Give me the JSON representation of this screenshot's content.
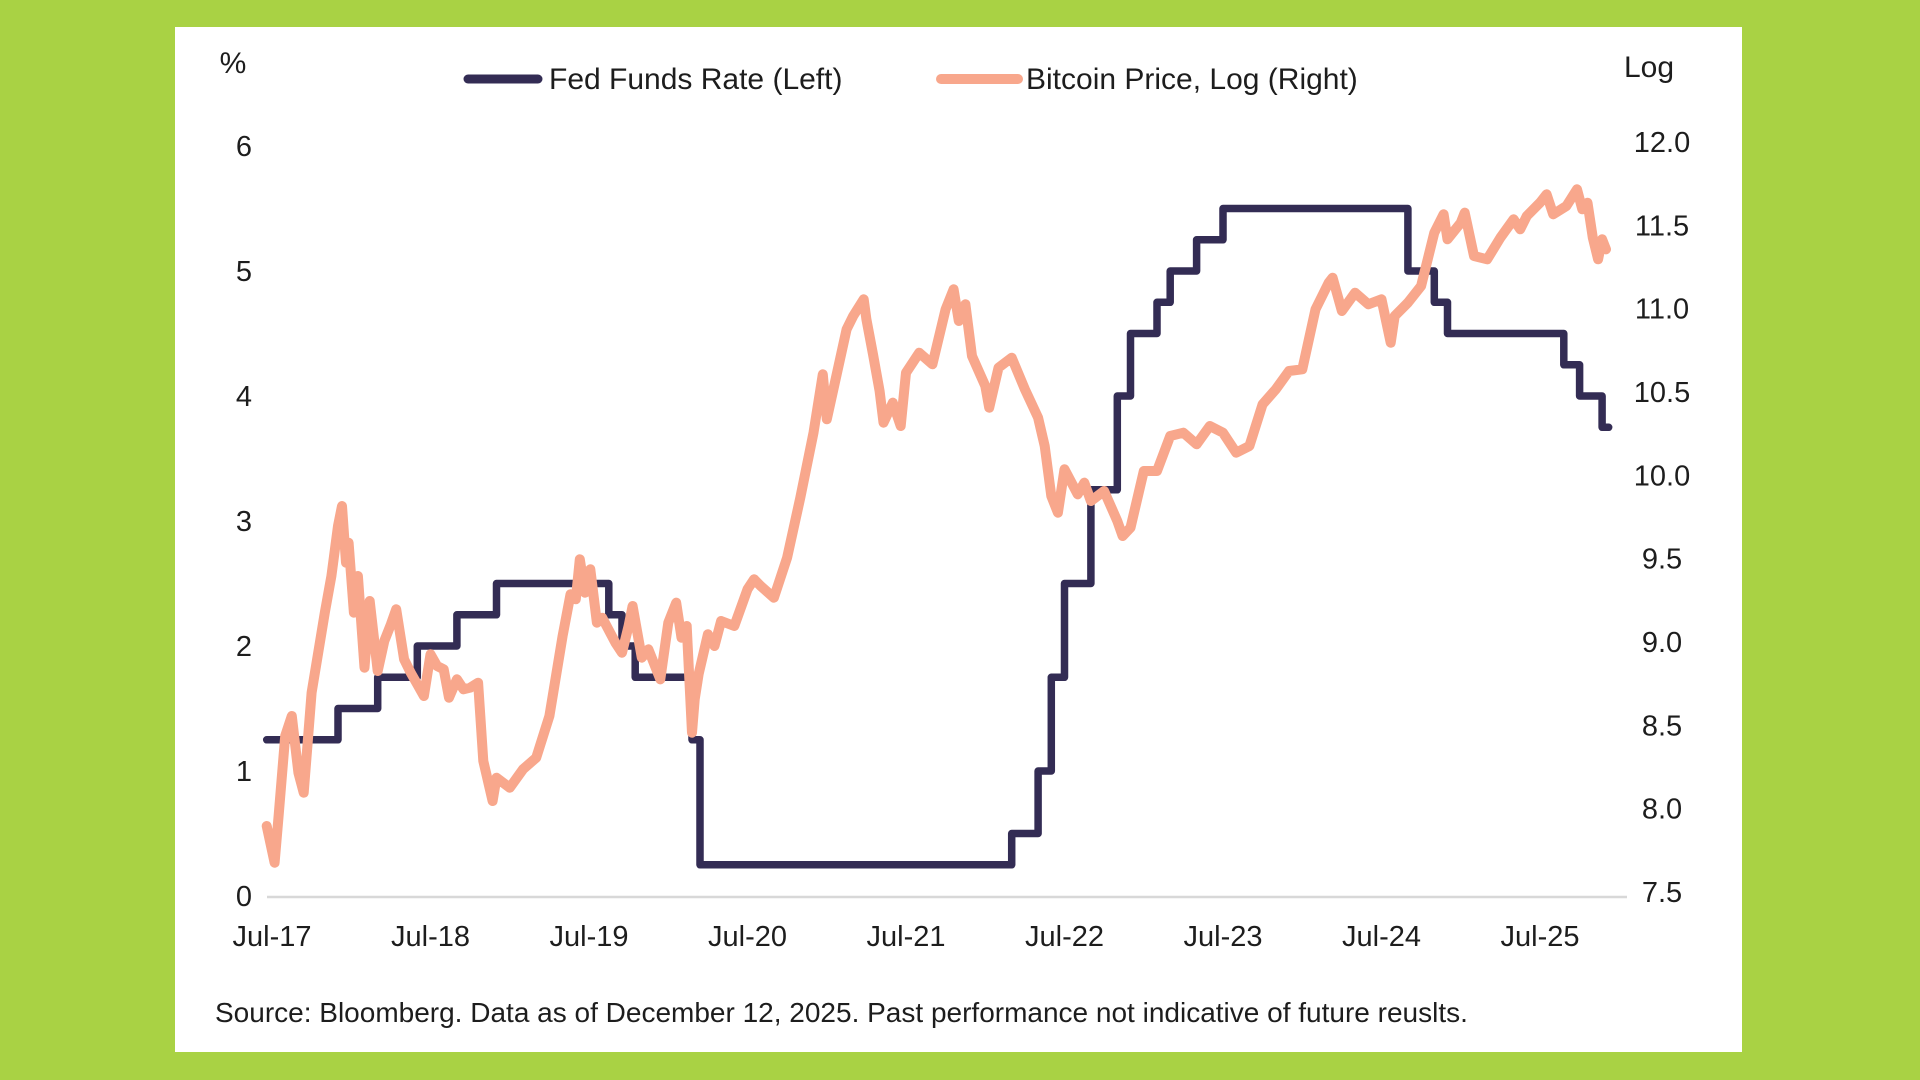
{
  "page": {
    "background_color": "#a9d244",
    "panel_color": "#ffffff",
    "text_color": "#1d1d1d",
    "axis_line_color": "#d8d8d8"
  },
  "legend": {
    "items": [
      {
        "label": "Fed Funds Rate (Left)",
        "color": "#332c54"
      },
      {
        "label": "Bitcoin Price, Log (Right)",
        "color": "#f8a78c"
      }
    ]
  },
  "source_note": "Source: Bloomberg. Data as of December 12, 2025. Past performance not indicative of future reuslts.",
  "chart_data": {
    "type": "line",
    "title": "",
    "grid": false,
    "legend_position": "top",
    "x_axis": {
      "unit": "months since Jul-2017",
      "data_start_m": -0.4,
      "data_end_m": 101.2,
      "ticks": [
        {
          "label": "Jul-17",
          "m": 0
        },
        {
          "label": "Jul-18",
          "m": 12
        },
        {
          "label": "Jul-19",
          "m": 24
        },
        {
          "label": "Jul-20",
          "m": 36
        },
        {
          "label": "Jul-21",
          "m": 48
        },
        {
          "label": "Jul-22",
          "m": 60
        },
        {
          "label": "Jul-23",
          "m": 72
        },
        {
          "label": "Jul-24",
          "m": 84
        },
        {
          "label": "Jul-25",
          "m": 96
        }
      ]
    },
    "left_axis": {
      "title": "%",
      "range": [
        0,
        6
      ],
      "ticks": [
        {
          "label": "6",
          "value": 6
        },
        {
          "label": "5",
          "value": 5
        },
        {
          "label": "4",
          "value": 4
        },
        {
          "label": "3",
          "value": 3
        },
        {
          "label": "2",
          "value": 2
        },
        {
          "label": "1",
          "value": 1
        },
        {
          "label": "0",
          "value": 0
        }
      ]
    },
    "right_axis": {
      "title": "Log",
      "range": [
        7.5,
        12.0
      ],
      "ticks": [
        {
          "label": "12.0",
          "value": 12.0
        },
        {
          "label": "11.5",
          "value": 11.5
        },
        {
          "label": "11.0",
          "value": 11.0
        },
        {
          "label": "10.5",
          "value": 10.5
        },
        {
          "label": "10.0",
          "value": 10.0
        },
        {
          "label": "9.5",
          "value": 9.5
        },
        {
          "label": "9.0",
          "value": 9.0
        },
        {
          "label": "8.5",
          "value": 8.5
        },
        {
          "label": "8.0",
          "value": 8.0
        },
        {
          "label": "7.5",
          "value": 7.5
        }
      ]
    },
    "series": [
      {
        "name": "Fed Funds Rate (Left)",
        "axis": "left",
        "style": "step",
        "color": "#332c54",
        "points": [
          [
            -0.4,
            1.25
          ],
          [
            5,
            1.5
          ],
          [
            8,
            1.75
          ],
          [
            11,
            2.0
          ],
          [
            14,
            2.25
          ],
          [
            17,
            2.5
          ],
          [
            25.5,
            2.25
          ],
          [
            26.5,
            2.0
          ],
          [
            27.5,
            1.75
          ],
          [
            31.8,
            1.25
          ],
          [
            32.4,
            0.25
          ],
          [
            56,
            0.5
          ],
          [
            58,
            1.0
          ],
          [
            59,
            1.75
          ],
          [
            60,
            2.5
          ],
          [
            62,
            3.25
          ],
          [
            64,
            4.0
          ],
          [
            65,
            4.5
          ],
          [
            67,
            4.75
          ],
          [
            68,
            5.0
          ],
          [
            70,
            5.25
          ],
          [
            72,
            5.5
          ],
          [
            86,
            5.0
          ],
          [
            88,
            4.75
          ],
          [
            89,
            4.5
          ],
          [
            97.8,
            4.25
          ],
          [
            99,
            4.0
          ],
          [
            100.7,
            3.75
          ]
        ]
      },
      {
        "name": "Bitcoin Price, Log (Right)",
        "axis": "right",
        "style": "line",
        "color": "#f8a78c",
        "points": [
          [
            -0.4,
            7.92
          ],
          [
            0.2,
            7.7
          ],
          [
            0.5,
            7.98
          ],
          [
            1,
            8.46
          ],
          [
            1.5,
            8.58
          ],
          [
            2,
            8.24
          ],
          [
            2.4,
            8.12
          ],
          [
            3,
            8.72
          ],
          [
            4,
            9.2
          ],
          [
            4.5,
            9.42
          ],
          [
            5,
            9.72
          ],
          [
            5.3,
            9.84
          ],
          [
            5.6,
            9.5
          ],
          [
            5.8,
            9.62
          ],
          [
            6.2,
            9.2
          ],
          [
            6.5,
            9.42
          ],
          [
            7,
            8.87
          ],
          [
            7.4,
            9.27
          ],
          [
            8,
            8.85
          ],
          [
            8.5,
            9.03
          ],
          [
            9,
            9.13
          ],
          [
            9.4,
            9.22
          ],
          [
            10,
            8.92
          ],
          [
            10.5,
            8.84
          ],
          [
            11,
            8.77
          ],
          [
            11.5,
            8.7
          ],
          [
            12,
            8.95
          ],
          [
            12.5,
            8.88
          ],
          [
            13,
            8.86
          ],
          [
            13.4,
            8.69
          ],
          [
            14,
            8.8
          ],
          [
            14.5,
            8.74
          ],
          [
            15,
            8.75
          ],
          [
            15.6,
            8.78
          ],
          [
            16,
            8.31
          ],
          [
            16.7,
            8.07
          ],
          [
            17,
            8.21
          ],
          [
            18,
            8.15
          ],
          [
            19,
            8.26
          ],
          [
            20,
            8.33
          ],
          [
            21,
            8.58
          ],
          [
            22,
            9.06
          ],
          [
            22.6,
            9.31
          ],
          [
            23,
            9.28
          ],
          [
            23.3,
            9.52
          ],
          [
            23.7,
            9.32
          ],
          [
            24.1,
            9.46
          ],
          [
            24.6,
            9.14
          ],
          [
            25,
            9.17
          ],
          [
            26,
            9.02
          ],
          [
            26.5,
            8.96
          ],
          [
            27,
            9.12
          ],
          [
            27.3,
            9.24
          ],
          [
            28,
            8.93
          ],
          [
            28.5,
            8.98
          ],
          [
            29,
            8.88
          ],
          [
            29.4,
            8.8
          ],
          [
            30,
            9.14
          ],
          [
            30.6,
            9.26
          ],
          [
            31,
            9.05
          ],
          [
            31.4,
            9.12
          ],
          [
            31.8,
            8.48
          ],
          [
            32,
            8.68
          ],
          [
            32.3,
            8.83
          ],
          [
            33,
            9.07
          ],
          [
            33.5,
            9.0
          ],
          [
            34,
            9.15
          ],
          [
            35,
            9.12
          ],
          [
            36,
            9.34
          ],
          [
            36.5,
            9.4
          ],
          [
            37,
            9.36
          ],
          [
            38,
            9.29
          ],
          [
            39,
            9.53
          ],
          [
            40,
            9.89
          ],
          [
            41,
            10.28
          ],
          [
            41.7,
            10.63
          ],
          [
            42,
            10.36
          ],
          [
            43,
            10.72
          ],
          [
            43.5,
            10.9
          ],
          [
            44,
            10.98
          ],
          [
            44.8,
            11.08
          ],
          [
            45,
            10.96
          ],
          [
            45.5,
            10.75
          ],
          [
            46,
            10.53
          ],
          [
            46.3,
            10.34
          ],
          [
            47,
            10.46
          ],
          [
            47.6,
            10.32
          ],
          [
            48,
            10.64
          ],
          [
            49,
            10.76
          ],
          [
            50,
            10.69
          ],
          [
            51,
            11.02
          ],
          [
            51.6,
            11.14
          ],
          [
            52,
            10.95
          ],
          [
            52.5,
            11.05
          ],
          [
            53,
            10.74
          ],
          [
            54,
            10.56
          ],
          [
            54.3,
            10.43
          ],
          [
            55,
            10.67
          ],
          [
            56,
            10.73
          ],
          [
            57,
            10.54
          ],
          [
            58,
            10.37
          ],
          [
            58.5,
            10.2
          ],
          [
            59,
            9.9
          ],
          [
            59.5,
            9.8
          ],
          [
            60,
            10.06
          ],
          [
            61,
            9.91
          ],
          [
            61.5,
            9.98
          ],
          [
            62,
            9.87
          ],
          [
            63,
            9.93
          ],
          [
            64,
            9.75
          ],
          [
            64.4,
            9.66
          ],
          [
            65,
            9.71
          ],
          [
            66,
            10.05
          ],
          [
            67,
            10.05
          ],
          [
            68,
            10.26
          ],
          [
            69,
            10.28
          ],
          [
            70,
            10.21
          ],
          [
            71,
            10.32
          ],
          [
            72,
            10.28
          ],
          [
            73,
            10.16
          ],
          [
            74,
            10.2
          ],
          [
            75,
            10.45
          ],
          [
            76,
            10.54
          ],
          [
            77,
            10.65
          ],
          [
            78,
            10.66
          ],
          [
            79,
            11.02
          ],
          [
            80,
            11.18
          ],
          [
            80.3,
            11.21
          ],
          [
            81,
            11.01
          ],
          [
            82,
            11.12
          ],
          [
            83,
            11.05
          ],
          [
            84,
            11.08
          ],
          [
            84.7,
            10.82
          ],
          [
            85,
            10.98
          ],
          [
            86,
            11.06
          ],
          [
            87,
            11.16
          ],
          [
            88,
            11.48
          ],
          [
            88.7,
            11.59
          ],
          [
            89,
            11.44
          ],
          [
            90,
            11.54
          ],
          [
            90.3,
            11.6
          ],
          [
            91,
            11.34
          ],
          [
            92,
            11.32
          ],
          [
            93,
            11.45
          ],
          [
            94,
            11.56
          ],
          [
            94.5,
            11.5
          ],
          [
            95,
            11.58
          ],
          [
            96,
            11.66
          ],
          [
            96.5,
            11.71
          ],
          [
            97,
            11.59
          ],
          [
            98,
            11.64
          ],
          [
            98.8,
            11.74
          ],
          [
            99.2,
            11.62
          ],
          [
            99.6,
            11.66
          ],
          [
            100,
            11.45
          ],
          [
            100.4,
            11.32
          ],
          [
            100.7,
            11.44
          ],
          [
            101,
            11.38
          ]
        ]
      }
    ]
  }
}
